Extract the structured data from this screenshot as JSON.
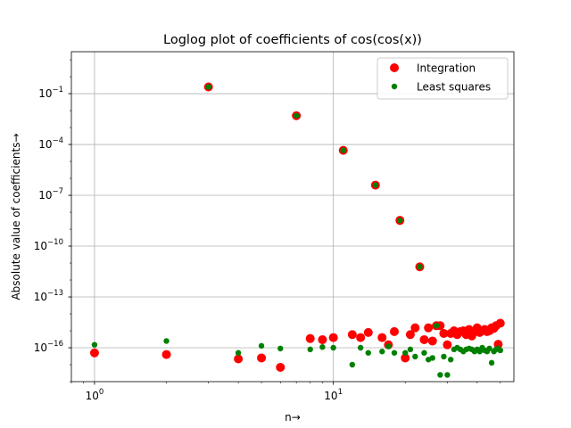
{
  "chart_data": {
    "type": "scatter",
    "title": "Loglog plot of coefficients of cos(cos(x))",
    "xlabel": "n→",
    "ylabel": "Absolute value of coefficients→",
    "xscale": "log",
    "yscale": "log",
    "xlim": [
      0.8,
      57
    ],
    "ylim": [
      1e-18,
      30.0
    ],
    "grid": "major",
    "legend_position": "top-right",
    "x_ticks": [
      {
        "value": 1,
        "base": "10",
        "exp": "0"
      },
      {
        "value": 10,
        "base": "10",
        "exp": "1"
      }
    ],
    "y_ticks": [
      {
        "value": 1e-16,
        "base": "10",
        "exp": "−16"
      },
      {
        "value": 1e-13,
        "base": "10",
        "exp": "−13"
      },
      {
        "value": 1e-10,
        "base": "10",
        "exp": "−10"
      },
      {
        "value": 1e-07,
        "base": "10",
        "exp": "−7"
      },
      {
        "value": 0.0001,
        "base": "10",
        "exp": "−4"
      },
      {
        "value": 0.1,
        "base": "10",
        "exp": "−1"
      }
    ],
    "series": [
      {
        "name": "Integration",
        "color": "#ff0000",
        "marker": "large-circle",
        "points": [
          [
            1,
            5e-17
          ],
          [
            2,
            4e-17
          ],
          [
            3,
            0.25
          ],
          [
            4,
            2.2e-17
          ],
          [
            5,
            2.5e-17
          ],
          [
            6,
            7e-18
          ],
          [
            7,
            0.005
          ],
          [
            8,
            3.5e-16
          ],
          [
            9,
            3e-16
          ],
          [
            10,
            4e-16
          ],
          [
            11,
            4.5e-05
          ],
          [
            12,
            6e-16
          ],
          [
            13,
            4e-16
          ],
          [
            14,
            8e-16
          ],
          [
            15,
            4e-07
          ],
          [
            16,
            4e-16
          ],
          [
            17,
            1.5e-16
          ],
          [
            18,
            9e-16
          ],
          [
            19,
            3.3e-09
          ],
          [
            20,
            2.5e-17
          ],
          [
            21,
            6e-16
          ],
          [
            22,
            1.5e-15
          ],
          [
            23,
            6e-12
          ],
          [
            24,
            3e-16
          ],
          [
            25,
            1.5e-15
          ],
          [
            26,
            2.5e-16
          ],
          [
            27,
            2e-15
          ],
          [
            28,
            2e-15
          ],
          [
            29,
            7e-16
          ],
          [
            30,
            1.5e-16
          ],
          [
            31,
            7e-16
          ],
          [
            32,
            1e-15
          ],
          [
            33,
            6e-16
          ],
          [
            34,
            9e-16
          ],
          [
            35,
            1e-15
          ],
          [
            36,
            6e-16
          ],
          [
            37,
            1.2e-15
          ],
          [
            38,
            5e-16
          ],
          [
            39,
            9e-16
          ],
          [
            40,
            1.5e-15
          ],
          [
            41,
            8e-16
          ],
          [
            42,
            1e-15
          ],
          [
            43,
            1.2e-15
          ],
          [
            44,
            9e-16
          ],
          [
            45,
            1e-15
          ],
          [
            46,
            1.5e-15
          ],
          [
            47,
            1.4e-15
          ],
          [
            48,
            2e-15
          ],
          [
            49,
            1.6e-16
          ],
          [
            50,
            2.8e-15
          ]
        ]
      },
      {
        "name": "Least squares",
        "color": "#008000",
        "marker": "small-circle",
        "points": [
          [
            1,
            1.5e-16
          ],
          [
            2,
            2.5e-16
          ],
          [
            3,
            0.25
          ],
          [
            4,
            5e-17
          ],
          [
            5,
            1.3e-16
          ],
          [
            6,
            9e-17
          ],
          [
            7,
            0.005
          ],
          [
            8,
            8e-17
          ],
          [
            9,
            1.1e-16
          ],
          [
            10,
            1e-16
          ],
          [
            11,
            4.5e-05
          ],
          [
            12,
            1e-17
          ],
          [
            13,
            1e-16
          ],
          [
            14,
            5e-17
          ],
          [
            15,
            4e-07
          ],
          [
            16,
            6e-17
          ],
          [
            17,
            1.2e-16
          ],
          [
            18,
            5e-17
          ],
          [
            19,
            3.3e-09
          ],
          [
            20,
            5e-17
          ],
          [
            21,
            8e-17
          ],
          [
            22,
            3e-17
          ],
          [
            23,
            6e-12
          ],
          [
            24,
            5e-17
          ],
          [
            25,
            2e-17
          ],
          [
            26,
            2.5e-17
          ],
          [
            27,
            2e-15
          ],
          [
            28,
            2.5e-18
          ],
          [
            29,
            3e-17
          ],
          [
            30,
            2.5e-18
          ],
          [
            31,
            2e-17
          ],
          [
            32,
            8e-17
          ],
          [
            33,
            1e-16
          ],
          [
            34,
            8e-17
          ],
          [
            35,
            6e-17
          ],
          [
            36,
            8e-17
          ],
          [
            37,
            9e-17
          ],
          [
            38,
            8e-17
          ],
          [
            39,
            6e-17
          ],
          [
            40,
            8e-17
          ],
          [
            41,
            6e-17
          ],
          [
            42,
            1e-16
          ],
          [
            43,
            7e-17
          ],
          [
            44,
            6e-17
          ],
          [
            45,
            9e-17
          ],
          [
            46,
            1.3e-17
          ],
          [
            47,
            6e-17
          ],
          [
            48,
            8e-17
          ],
          [
            49,
            9e-17
          ],
          [
            50,
            7e-17
          ]
        ]
      }
    ]
  }
}
